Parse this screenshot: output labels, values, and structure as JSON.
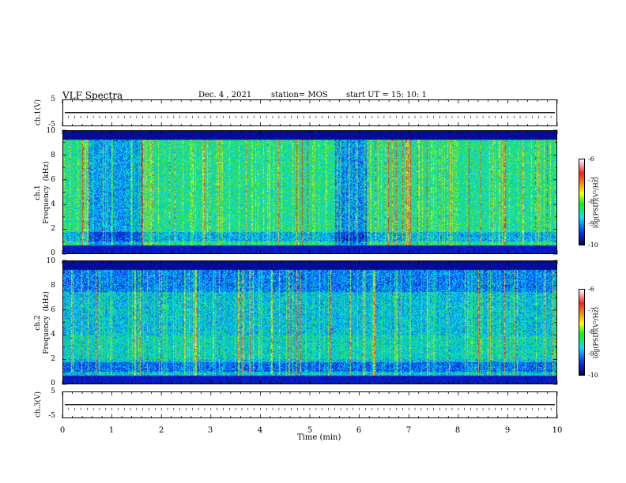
{
  "header": {
    "title": "VLF Spectra",
    "date": "Dec. 4 , 2021",
    "station": "station= MOS",
    "start": "start  UT =   15: 10: 1"
  },
  "chart_data": [
    {
      "type": "line",
      "panel": "ch1-voltage",
      "ylabel": "ch.1(V)",
      "ylim": [
        -5,
        5
      ],
      "yticks": [
        "5",
        "-5"
      ],
      "x": [
        0,
        10
      ],
      "values": [
        -1.7,
        -1.7
      ]
    },
    {
      "type": "heatmap",
      "panel": "ch1-spectrogram",
      "ylabel": "ch.1\nFrequency  (kHz)",
      "ylim": [
        0,
        10
      ],
      "yticks": [
        "0",
        "2",
        "4",
        "6",
        "8",
        "10"
      ],
      "xlim": [
        0,
        10
      ],
      "colorbar": {
        "label": "log(PSD)(V²/Hz)",
        "range": [
          -10,
          -6
        ],
        "ticks": [
          "-6",
          "-7",
          "-8",
          "-9",
          "-10"
        ]
      }
    },
    {
      "type": "heatmap",
      "panel": "ch2-spectrogram",
      "ylabel": "ch.2\nFrequency  (kHz)",
      "ylim": [
        0,
        10
      ],
      "yticks": [
        "0",
        "2",
        "4",
        "6",
        "8",
        "10"
      ],
      "xlim": [
        0,
        10
      ],
      "colorbar": {
        "label": "log(PSD)(V²/Hz)",
        "range": [
          -10,
          -6
        ],
        "ticks": [
          "-6",
          "-7",
          "-8",
          "-9",
          "-10"
        ]
      }
    },
    {
      "type": "line",
      "panel": "ch3-voltage",
      "ylabel": "ch.3(V)",
      "ylim": [
        -5,
        5
      ],
      "yticks": [
        "5",
        "-5"
      ],
      "x": [
        0,
        10
      ],
      "values": [
        -1.7,
        -1.7
      ]
    }
  ],
  "xaxis": {
    "label": "Time  (min)",
    "ticks": [
      "0",
      "1",
      "2",
      "3",
      "4",
      "5",
      "6",
      "7",
      "8",
      "9",
      "10"
    ]
  },
  "colors": {
    "green": "#20e040",
    "cyan": "#00d8ff",
    "blue": "#1030ff",
    "navy": "#000070",
    "red": "#ff2020",
    "yellow": "#ffff20"
  }
}
